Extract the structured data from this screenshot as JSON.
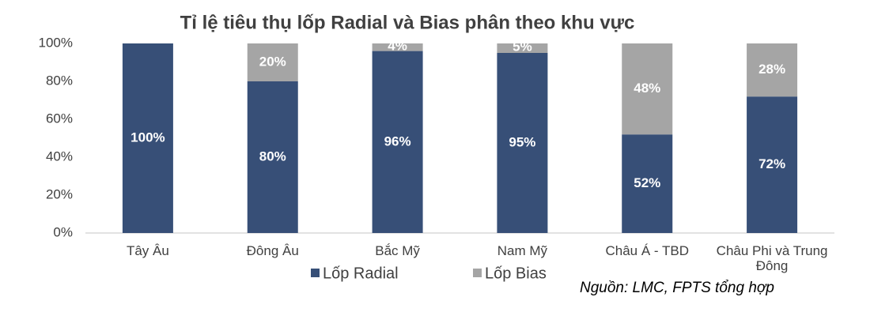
{
  "chart_data": {
    "type": "stacked-bar",
    "title": "Tỉ lệ tiêu thụ lốp Radial và Bias phân theo khu vực",
    "categories": [
      "Tây Âu",
      "Đông Âu",
      "Bắc Mỹ",
      "Nam Mỹ",
      "Châu Á - TBD",
      "Châu Phi và Trung Đông"
    ],
    "series": [
      {
        "name": "Lốp Radial",
        "color": "#374f77",
        "values": [
          100,
          80,
          96,
          95,
          52,
          72
        ],
        "value_labels": [
          "100%",
          "80%",
          "96%",
          "95%",
          "52%",
          "72%"
        ]
      },
      {
        "name": "Lốp Bias",
        "color": "#a5a5a5",
        "values": [
          0,
          20,
          4,
          5,
          48,
          28
        ],
        "value_labels": [
          null,
          "20%",
          "4%",
          "5%",
          "48%",
          "28%"
        ]
      }
    ],
    "ylim": [
      0,
      100
    ],
    "yticks": [
      {
        "value": 0,
        "label": "0%"
      },
      {
        "value": 20,
        "label": "20%"
      },
      {
        "value": 40,
        "label": "40%"
      },
      {
        "value": 60,
        "label": "60%"
      },
      {
        "value": 80,
        "label": "80%"
      },
      {
        "value": 100,
        "label": "100%"
      }
    ],
    "source": "Nguồn: LMC, FPTS tổng hợp"
  }
}
